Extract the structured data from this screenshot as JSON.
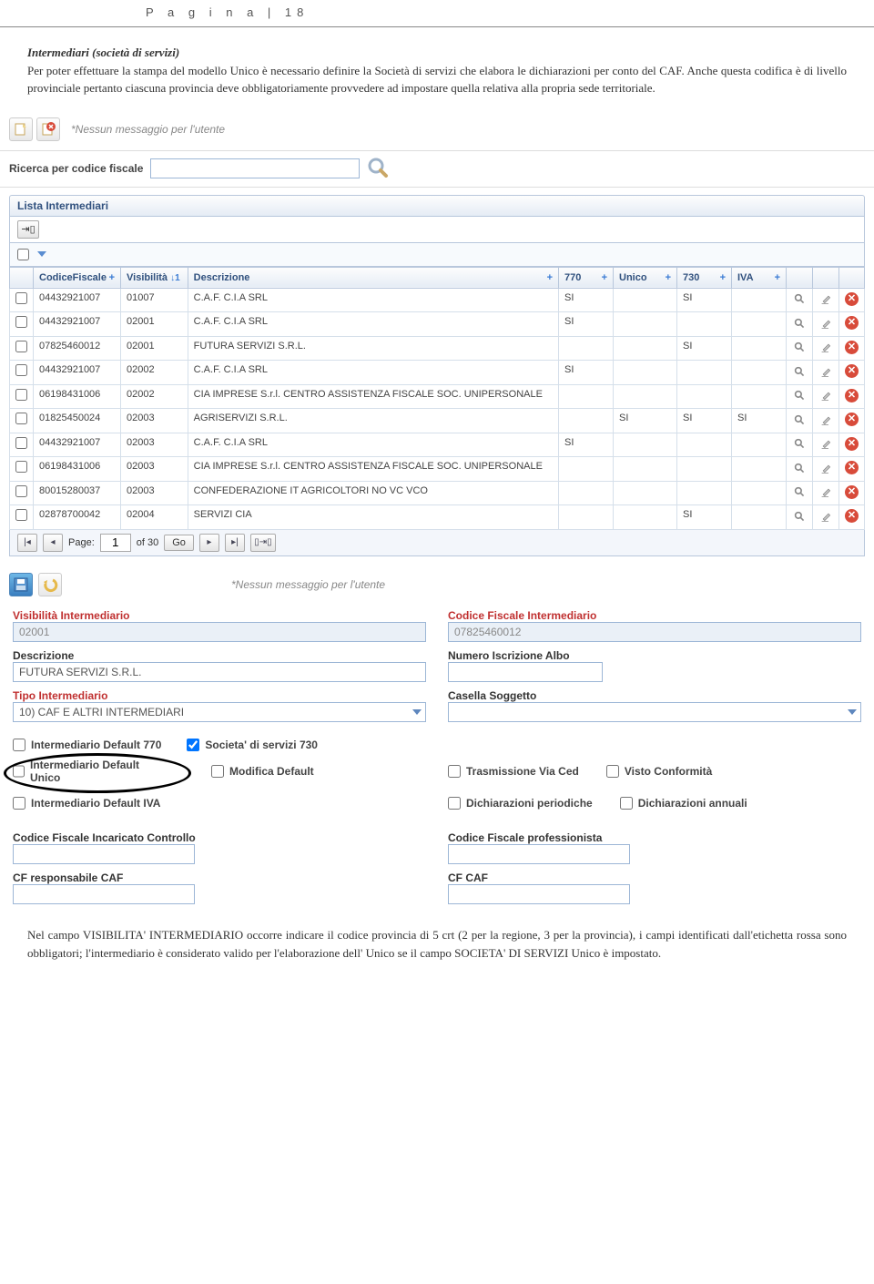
{
  "header": "P a g i n a  | 18",
  "intro": {
    "title": "Intermediari (società di servizi)",
    "body": "Per poter effettuare la stampa del modello Unico è necessario definire la Società di servizi che elabora le dichiarazioni per conto del CAF. Anche questa codifica è di livello provinciale pertanto ciascuna provincia deve obbligatoriamente provvedere ad impostare quella relativa alla propria sede territoriale."
  },
  "msgNone": "*Nessun messaggio per l'utente",
  "search": {
    "label": "Ricerca per codice fiscale"
  },
  "panelTitle": "Lista Intermediari",
  "columns": {
    "cf": "CodiceFiscale",
    "vis": "Visibilità",
    "desc": "Descrizione",
    "c770": "770",
    "unico": "Unico",
    "c730": "730",
    "iva": "IVA"
  },
  "rows": [
    {
      "cf": "04432921007",
      "vis": "01007",
      "desc": "C.A.F. C.I.A SRL",
      "c770": "SI",
      "unico": "",
      "c730": "SI",
      "iva": ""
    },
    {
      "cf": "04432921007",
      "vis": "02001",
      "desc": "C.A.F. C.I.A SRL",
      "c770": "SI",
      "unico": "",
      "c730": "",
      "iva": ""
    },
    {
      "cf": "07825460012",
      "vis": "02001",
      "desc": "FUTURA SERVIZI S.R.L.",
      "c770": "",
      "unico": "",
      "c730": "SI",
      "iva": ""
    },
    {
      "cf": "04432921007",
      "vis": "02002",
      "desc": "C.A.F. C.I.A SRL",
      "c770": "SI",
      "unico": "",
      "c730": "",
      "iva": ""
    },
    {
      "cf": "06198431006",
      "vis": "02002",
      "desc": "CIA IMPRESE S.r.l. CENTRO ASSISTENZA FISCALE SOC. UNIPERSONALE",
      "c770": "",
      "unico": "",
      "c730": "",
      "iva": ""
    },
    {
      "cf": "01825450024",
      "vis": "02003",
      "desc": "AGRISERVIZI S.R.L.",
      "c770": "",
      "unico": "SI",
      "c730": "SI",
      "iva": "SI"
    },
    {
      "cf": "04432921007",
      "vis": "02003",
      "desc": "C.A.F. C.I.A SRL",
      "c770": "SI",
      "unico": "",
      "c730": "",
      "iva": ""
    },
    {
      "cf": "06198431006",
      "vis": "02003",
      "desc": "CIA IMPRESE S.r.l. CENTRO ASSISTENZA FISCALE SOC. UNIPERSONALE",
      "c770": "",
      "unico": "",
      "c730": "",
      "iva": ""
    },
    {
      "cf": "80015280037",
      "vis": "02003",
      "desc": "CONFEDERAZIONE IT AGRICOLTORI NO VC VCO",
      "c770": "",
      "unico": "",
      "c730": "",
      "iva": ""
    },
    {
      "cf": "02878700042",
      "vis": "02004",
      "desc": "SERVIZI CIA",
      "c770": "",
      "unico": "",
      "c730": "SI",
      "iva": ""
    }
  ],
  "pager": {
    "pageLabel": "Page:",
    "page": "1",
    "of": "of 30",
    "go": "Go"
  },
  "form": {
    "visLabel": "Visibilità Intermediario",
    "visVal": "02001",
    "cfLabel": "Codice Fiscale Intermediario",
    "cfVal": "07825460012",
    "descLabel": "Descrizione",
    "descVal": "FUTURA SERVIZI S.R.L.",
    "albLabel": "Numero Iscrizione Albo",
    "tipoLabel": "Tipo Intermediario",
    "tipoVal": "10) CAF E ALTRI INTERMEDIARI",
    "casLabel": "Casella Soggetto",
    "chk770": "Intermediario Default 770",
    "chk730": "Societa' di servizi 730",
    "chkUnico": "Intermediario Default Unico",
    "chkMod": "Modifica Default",
    "chkTras": "Trasmissione Via Ced",
    "chkVisto": "Visto Conformità",
    "chkIva": "Intermediario Default IVA",
    "chkPer": "Dichiarazioni periodiche",
    "chkAnn": "Dichiarazioni annuali",
    "cfIncLabel": "Codice Fiscale Incaricato Controllo",
    "cfProfLabel": "Codice Fiscale professionista",
    "cfRespLabel": "CF responsabile CAF",
    "cfCafLabel": "CF CAF"
  },
  "footer": "Nel campo VISIBILITA' INTERMEDIARIO occorre indicare il codice provincia di 5 crt (2 per la regione, 3 per la provincia), i campi identificati dall'etichetta rossa sono obbligatori; l'intermediario è considerato valido per l'elaborazione dell' Unico se il campo SOCIETA' DI SERVIZI Unico è impostato."
}
